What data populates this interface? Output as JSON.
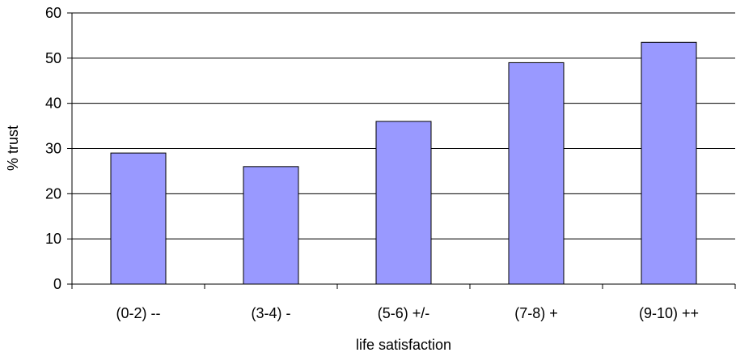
{
  "chart_data": {
    "type": "bar",
    "categories": [
      "(0-2) --",
      "(3-4) -",
      "(5-6) +/-",
      "(7-8) +",
      "(9-10) ++"
    ],
    "values": [
      29,
      26,
      36,
      49,
      53.5
    ],
    "title": "",
    "xlabel": "life satisfaction",
    "ylabel": "% trust",
    "ylim": [
      0,
      60
    ],
    "yticks": [
      0,
      10,
      20,
      30,
      40,
      50,
      60
    ],
    "grid": true,
    "legend": "none",
    "bar_color": "#9999FF",
    "bar_edge_color": "#000000",
    "grid_color": "#000000"
  }
}
